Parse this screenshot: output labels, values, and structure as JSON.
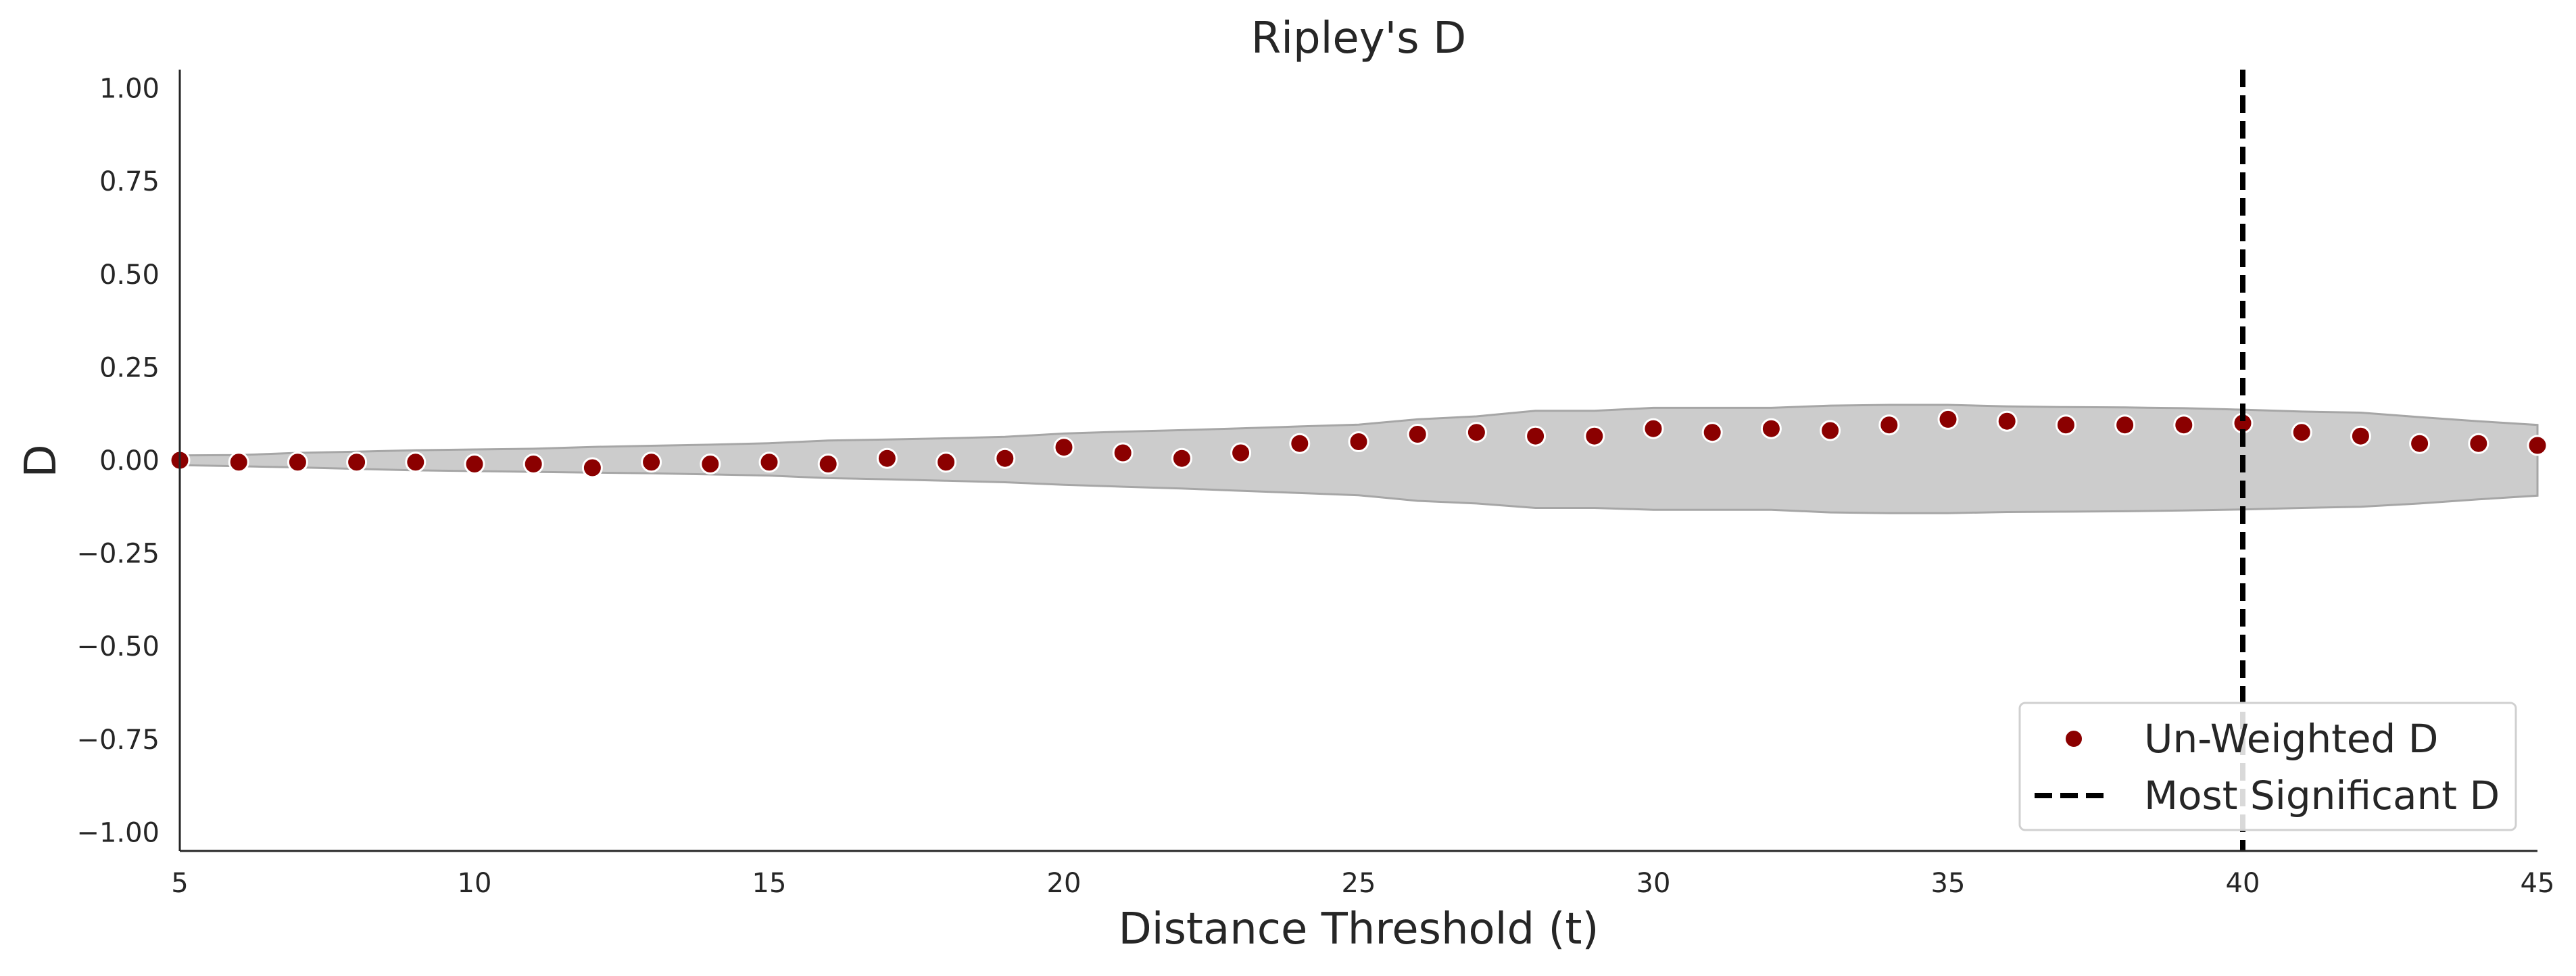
{
  "chart_data": {
    "type": "scatter",
    "title": "Ripley's D",
    "xlabel": "Distance Threshold (t)",
    "ylabel": "D",
    "xlim": [
      5,
      45
    ],
    "ylim": [
      -1.05,
      1.05
    ],
    "xticks": [
      5,
      10,
      15,
      20,
      25,
      30,
      35,
      40,
      45
    ],
    "yticks": [
      1.0,
      0.75,
      0.5,
      0.25,
      0.0,
      -0.25,
      -0.5,
      -0.75,
      -1.0
    ],
    "x_tick_labels": [
      "5",
      "10",
      "15",
      "20",
      "25",
      "30",
      "35",
      "40",
      "45"
    ],
    "y_tick_labels": [
      "1.00",
      "0.75",
      "0.50",
      "0.25",
      "0.00",
      "−0.25",
      "−0.50",
      "−0.75",
      "−1.00"
    ],
    "grid": false,
    "legend_position": "lower-right",
    "series": [
      {
        "name": "Un-Weighted D",
        "kind": "scatter",
        "color": "#8b0000",
        "x": [
          5,
          6,
          7,
          8,
          9,
          10,
          11,
          12,
          13,
          14,
          15,
          16,
          17,
          18,
          19,
          20,
          21,
          22,
          23,
          24,
          25,
          26,
          27,
          28,
          29,
          30,
          31,
          32,
          33,
          34,
          35,
          36,
          37,
          38,
          39,
          40,
          41,
          42,
          43,
          44,
          45
        ],
        "y": [
          0.0,
          -0.005,
          -0.005,
          -0.005,
          -0.005,
          -0.01,
          -0.01,
          -0.02,
          -0.005,
          -0.01,
          -0.005,
          -0.01,
          0.005,
          -0.005,
          0.005,
          0.035,
          0.02,
          0.005,
          0.02,
          0.045,
          0.05,
          0.07,
          0.075,
          0.065,
          0.065,
          0.085,
          0.075,
          0.085,
          0.08,
          0.095,
          0.11,
          0.105,
          0.095,
          0.095,
          0.095,
          0.1,
          0.075,
          0.065,
          0.045,
          0.045,
          0.04
        ]
      },
      {
        "name": "Most Significant D",
        "kind": "vline",
        "color": "#000000",
        "x": 40
      }
    ],
    "envelope": {
      "color": "#cccccc",
      "edge_color": "#a6a6a6",
      "x": [
        5,
        6,
        7,
        8,
        9,
        10,
        11,
        12,
        13,
        14,
        15,
        16,
        17,
        18,
        19,
        20,
        21,
        22,
        23,
        24,
        25,
        26,
        27,
        28,
        29,
        30,
        31,
        32,
        33,
        34,
        35,
        36,
        37,
        38,
        39,
        40,
        41,
        42,
        43,
        44,
        45
      ],
      "upper": [
        0.013,
        0.014,
        0.02,
        0.023,
        0.027,
        0.029,
        0.031,
        0.036,
        0.039,
        0.042,
        0.046,
        0.053,
        0.056,
        0.059,
        0.063,
        0.072,
        0.077,
        0.081,
        0.086,
        0.091,
        0.096,
        0.11,
        0.118,
        0.133,
        0.133,
        0.141,
        0.141,
        0.141,
        0.147,
        0.149,
        0.149,
        0.145,
        0.143,
        0.142,
        0.14,
        0.136,
        0.131,
        0.128,
        0.116,
        0.105,
        0.095
      ],
      "lower": [
        -0.013,
        -0.016,
        -0.019,
        -0.023,
        -0.027,
        -0.029,
        -0.031,
        -0.033,
        -0.035,
        -0.038,
        -0.041,
        -0.048,
        -0.051,
        -0.055,
        -0.059,
        -0.066,
        -0.071,
        -0.076,
        -0.082,
        -0.088,
        -0.094,
        -0.109,
        -0.116,
        -0.128,
        -0.128,
        -0.133,
        -0.133,
        -0.133,
        -0.14,
        -0.142,
        -0.142,
        -0.139,
        -0.138,
        -0.137,
        -0.135,
        -0.132,
        -0.128,
        -0.125,
        -0.116,
        -0.105,
        -0.095
      ]
    }
  }
}
